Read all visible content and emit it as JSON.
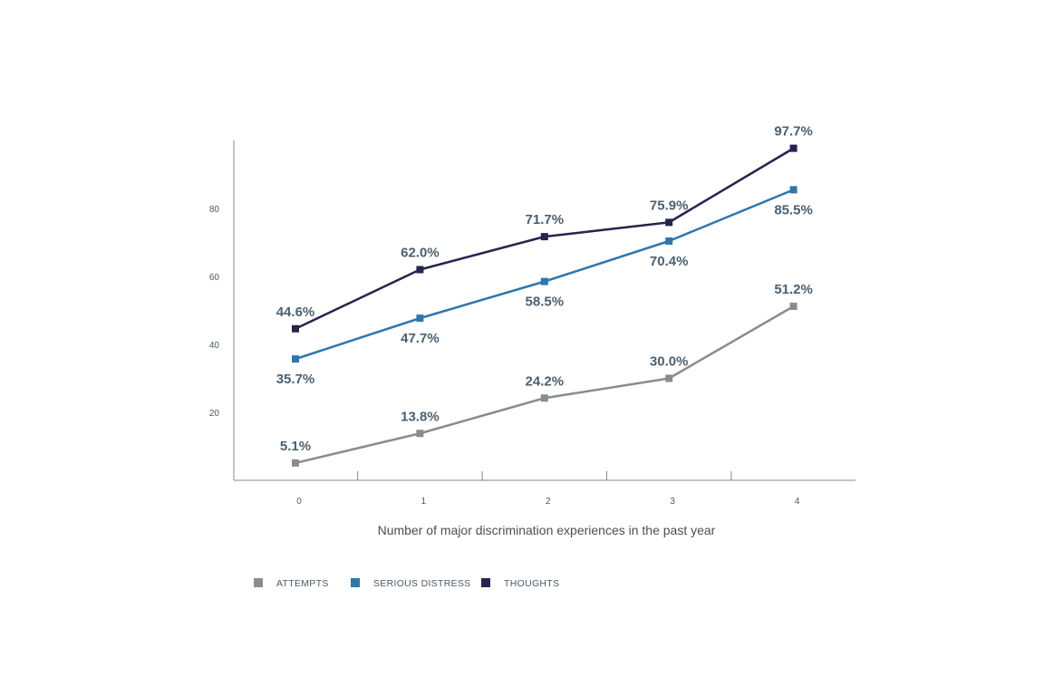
{
  "chart_data": {
    "type": "line",
    "xlabel": "Number of major discrimination experiences in the past year",
    "ylabel": "",
    "categories": [
      "0",
      "1",
      "2",
      "3",
      "4"
    ],
    "yticks": [
      "20",
      "40",
      "60",
      "80"
    ],
    "ylim": [
      0,
      100
    ],
    "grid": false,
    "legend_position": "bottom-left",
    "series": [
      {
        "key": "attempts",
        "name": "ATTEMPTS",
        "color": "#8a8c8e",
        "values": [
          5.1,
          13.8,
          24.2,
          30.0,
          51.2
        ],
        "labels": [
          "5.1%",
          "13.8%",
          "24.2%",
          "30.0%",
          "51.2%"
        ]
      },
      {
        "key": "distress",
        "name": "SERIOUS DISTRESS",
        "color": "#2e77ad",
        "values": [
          35.7,
          47.7,
          58.5,
          70.4,
          85.5
        ],
        "labels": [
          "35.7%",
          "47.7%",
          "58.5%",
          "70.4%",
          "85.5%"
        ]
      },
      {
        "key": "thoughts",
        "name": "THOUGHTS",
        "color": "#25244f",
        "values": [
          44.6,
          62.0,
          71.7,
          75.9,
          97.7
        ],
        "labels": [
          "44.6%",
          "62.0%",
          "71.7%",
          "75.9%",
          "97.7%"
        ]
      }
    ]
  }
}
